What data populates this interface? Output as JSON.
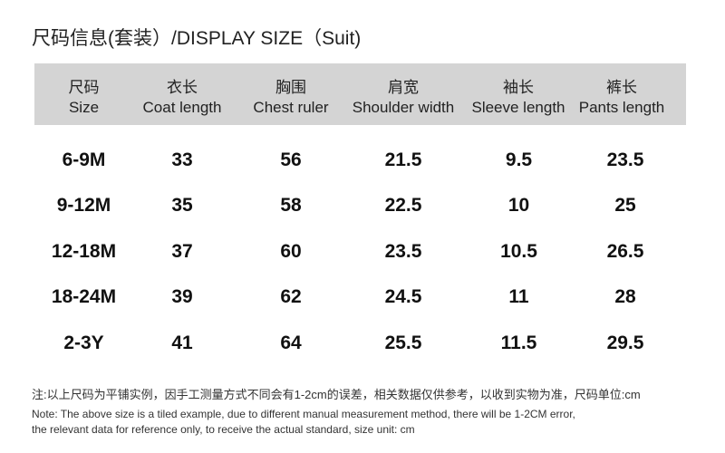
{
  "title": "尺码信息(套装）/DISPLAY  SIZE（Suit)",
  "table": {
    "headers": [
      {
        "cn": "尺码",
        "en": "Size"
      },
      {
        "cn": "衣长",
        "en": "Coat length"
      },
      {
        "cn": "胸围",
        "en": "Chest ruler"
      },
      {
        "cn": "肩宽",
        "en": "Shoulder  width"
      },
      {
        "cn": "袖长",
        "en": "Sleeve length"
      },
      {
        "cn": "裤长",
        "en": "Pants length"
      }
    ],
    "rows": [
      [
        "6-9M",
        "33",
        "56",
        "21.5",
        "9.5",
        "23.5"
      ],
      [
        "9-12M",
        "35",
        "58",
        "22.5",
        "10",
        "25"
      ],
      [
        "12-18M",
        "37",
        "60",
        "23.5",
        "10.5",
        "26.5"
      ],
      [
        "18-24M",
        "39",
        "62",
        "24.5",
        "11",
        "28"
      ],
      [
        "2-3Y",
        "41",
        "64",
        "25.5",
        "11.5",
        "29.5"
      ]
    ]
  },
  "notes": {
    "cn": "注:以上尺码为平铺实例，因手工测量方式不同会有1-2cm的误差，相关数据仅供参考，以收到实物为准，尺码单位:cm",
    "en_line1": "Note: The above size is a tiled example, due to different manual measurement method, there will be 1-2CM error,",
    "en_line2": "the relevant data for reference only, to receive the actual standard, size unit: cm"
  }
}
